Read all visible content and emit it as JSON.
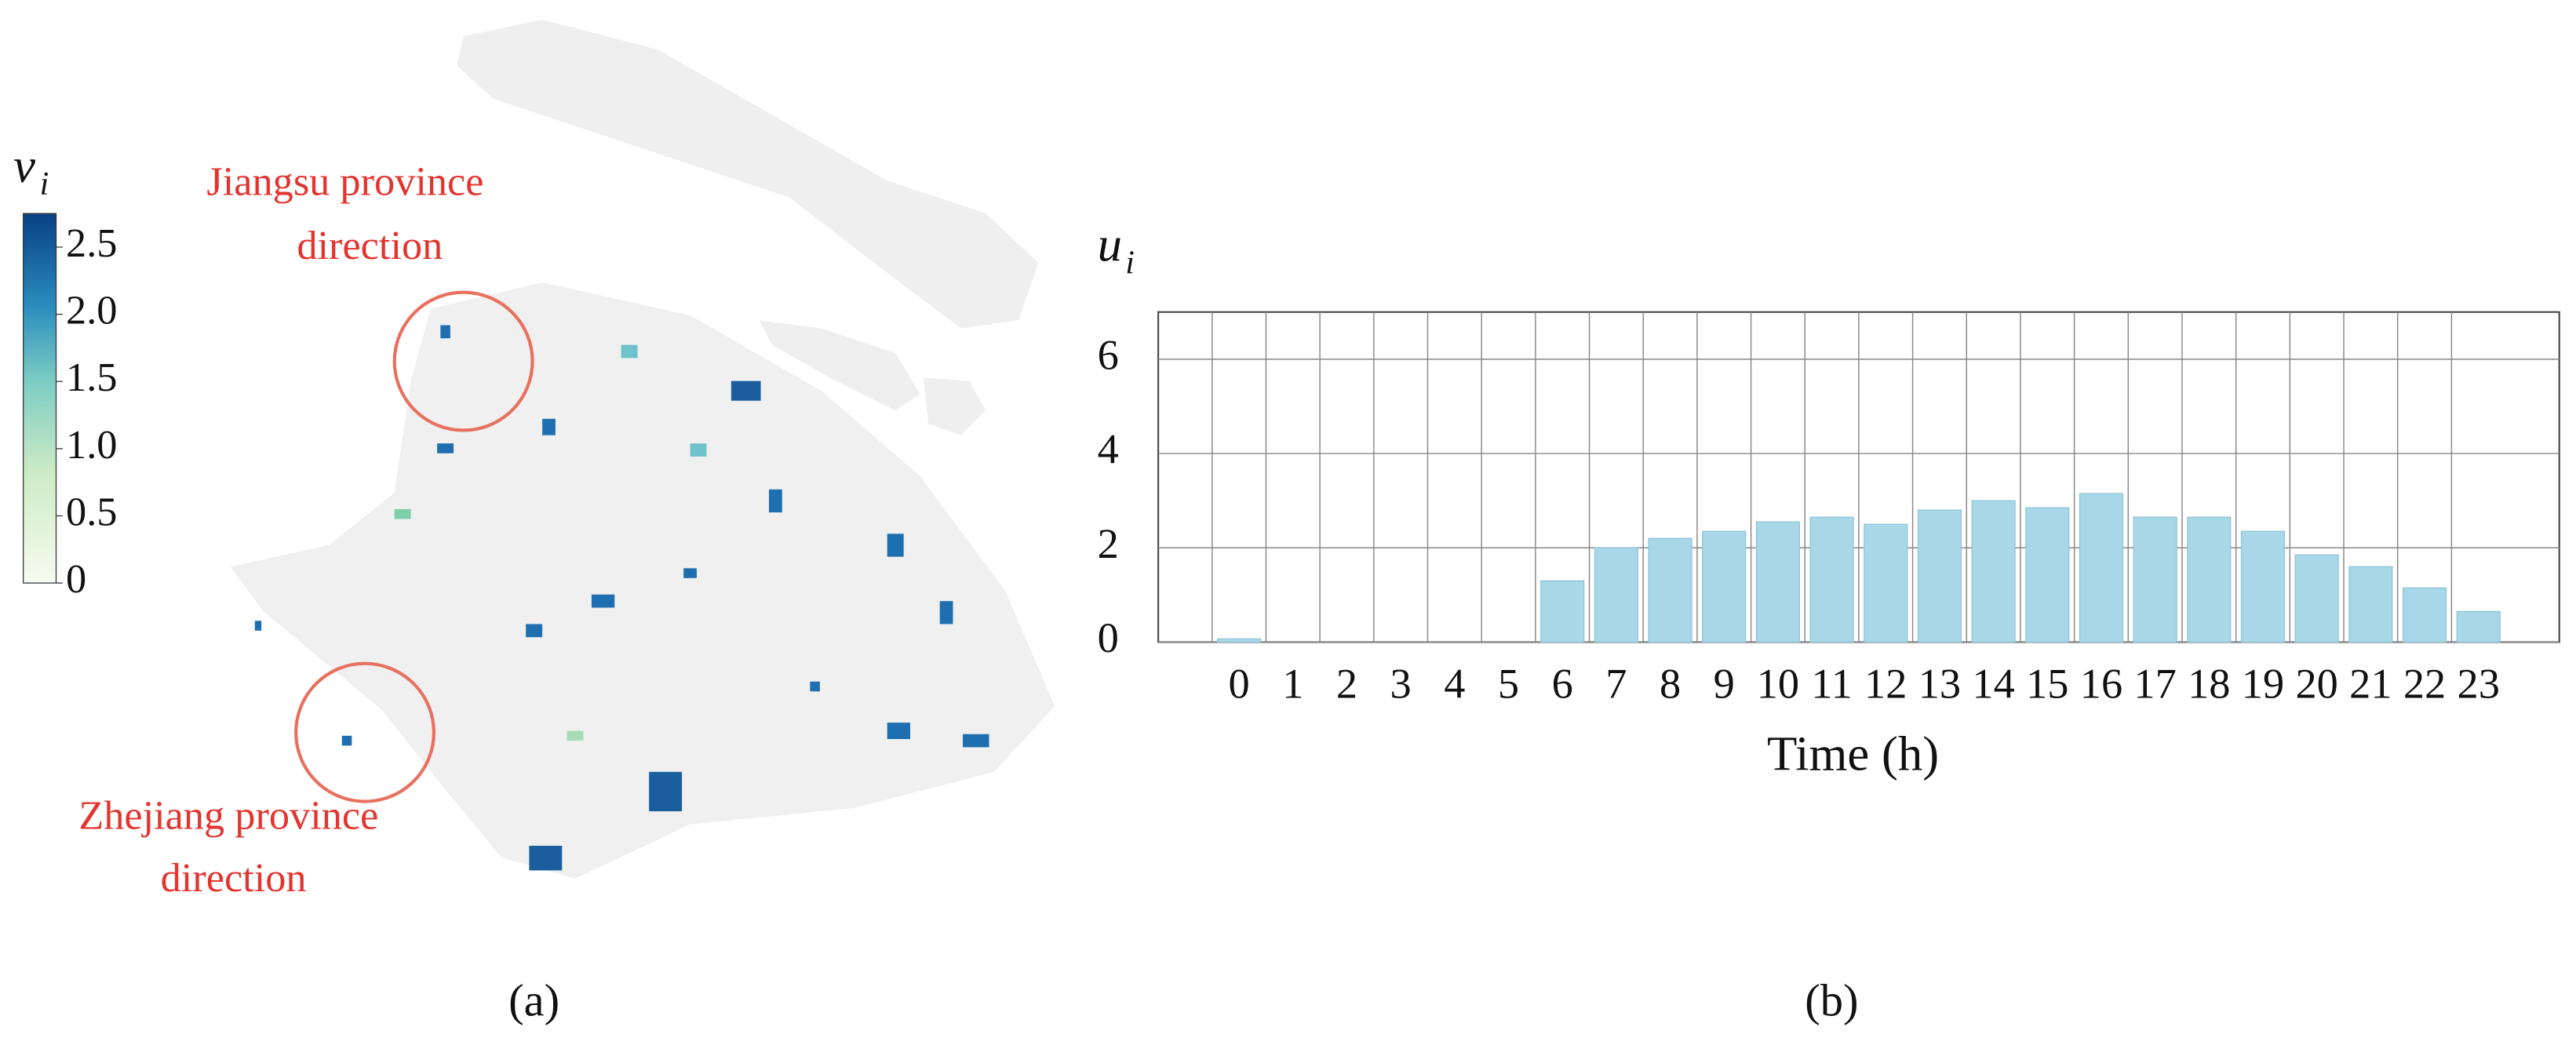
{
  "chart_data": [
    {
      "type": "map",
      "colorbar_label": {
        "symbol": "v",
        "subscript": "i"
      },
      "clim": [
        0,
        2.75
      ],
      "cticks": [
        0,
        0.5,
        {
          "value": 1,
          "label": "1.0"
        },
        1.5,
        {
          "value": 2,
          "label": "2.0"
        },
        2.5
      ],
      "annotations": [
        [
          "Jiangsu province",
          "direction"
        ],
        [
          "Zhejiang province",
          "direction"
        ]
      ],
      "panel_label": "(a)"
    },
    {
      "type": "bar",
      "ylabel": {
        "symbol": "u",
        "subscript": "i"
      },
      "xlabel": "Time (h)",
      "panel_label": "(b)",
      "categories": [
        "0",
        "1",
        "2",
        "3",
        "4",
        "5",
        "6",
        "7",
        "8",
        "9",
        "10",
        "11",
        "12",
        "13",
        "14",
        "15",
        "16",
        "17",
        "18",
        "19",
        "20",
        "21",
        "22",
        "23"
      ],
      "values": [
        0.07,
        0,
        0,
        0,
        0,
        0,
        1.3,
        2.0,
        2.2,
        2.35,
        2.55,
        2.65,
        2.5,
        2.8,
        3.0,
        2.85,
        3.15,
        2.65,
        2.65,
        2.35,
        1.85,
        1.6,
        1.15,
        0.65
      ],
      "color": "#a8d7e8",
      "ylim": [
        0,
        7
      ],
      "yticks": [
        0,
        2,
        4,
        6
      ],
      "grid": true
    }
  ]
}
